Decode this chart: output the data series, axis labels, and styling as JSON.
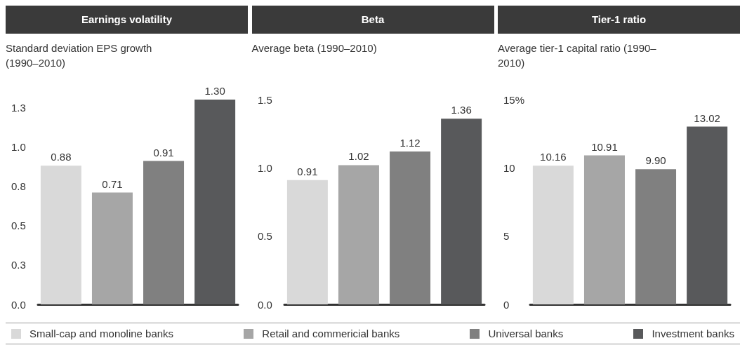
{
  "chart_data": [
    {
      "type": "bar",
      "title": "Earnings volatility",
      "subtitle": "Standard deviation EPS growth (1990–2010)",
      "categories": [
        null
      ],
      "series": [
        {
          "name": "Small-cap and monoline banks",
          "color": "#d9d9d9",
          "values": [
            0.88
          ]
        },
        {
          "name": "Retail and commericial banks",
          "color": "#a6a6a6",
          "values": [
            0.71
          ]
        },
        {
          "name": "Universal banks",
          "color": "#808080",
          "values": [
            0.91
          ]
        },
        {
          "name": "Investment banks",
          "color": "#58595b",
          "values": [
            1.3
          ],
          "value_labels": [
            "1.30"
          ]
        }
      ],
      "ylim": [
        0,
        1.3
      ],
      "yticks": [
        {
          "value": 0,
          "label": "0.0"
        },
        {
          "value": 0.25,
          "label": "0.3"
        },
        {
          "value": 0.5,
          "label": "0.5"
        },
        {
          "value": 0.75,
          "label": "0.8"
        },
        {
          "value": 1,
          "label": "1.0"
        },
        {
          "value": 1.25,
          "label": "1.3"
        }
      ],
      "data_labels": true,
      "grid": false,
      "legend": "bottom",
      "tick_labels": "y"
    },
    {
      "type": "bar",
      "title": "Beta",
      "subtitle": "Average beta (1990–2010)",
      "categories": [
        null
      ],
      "series": [
        {
          "color": "#d9d9d9",
          "values": [
            0.91
          ]
        },
        {
          "color": "#a6a6a6",
          "values": [
            1.02
          ]
        },
        {
          "color": "#808080",
          "values": [
            1.12
          ]
        },
        {
          "color": "#58595b",
          "values": [
            1.36
          ]
        }
      ],
      "ylim": [
        0,
        1.5
      ],
      "yticks": [
        {
          "value": 0,
          "label": "0.0"
        },
        0.5,
        {
          "value": 1,
          "label": "1.0"
        },
        1.5
      ],
      "data_labels": true,
      "grid": false,
      "tick_labels": "y"
    },
    {
      "type": "bar",
      "title": "Tier-1 ratio",
      "subtitle": "Average tier-1 capital ratio (1990–2010)",
      "categories": [
        null
      ],
      "series": [
        {
          "color": "#d9d9d9",
          "values": [
            10.16
          ]
        },
        {
          "color": "#a6a6a6",
          "values": [
            10.91
          ]
        },
        {
          "color": "#808080",
          "values": [
            9.9
          ],
          "value_labels": [
            "9.90"
          ]
        },
        {
          "color": "#58595b",
          "values": [
            13.02
          ]
        }
      ],
      "ylim": [
        0,
        15
      ],
      "yticks": [
        0,
        5,
        10,
        {
          "value": 15,
          "label": "15%"
        }
      ],
      "data_labels": true,
      "grid": false,
      "tick_labels": "y"
    }
  ]
}
